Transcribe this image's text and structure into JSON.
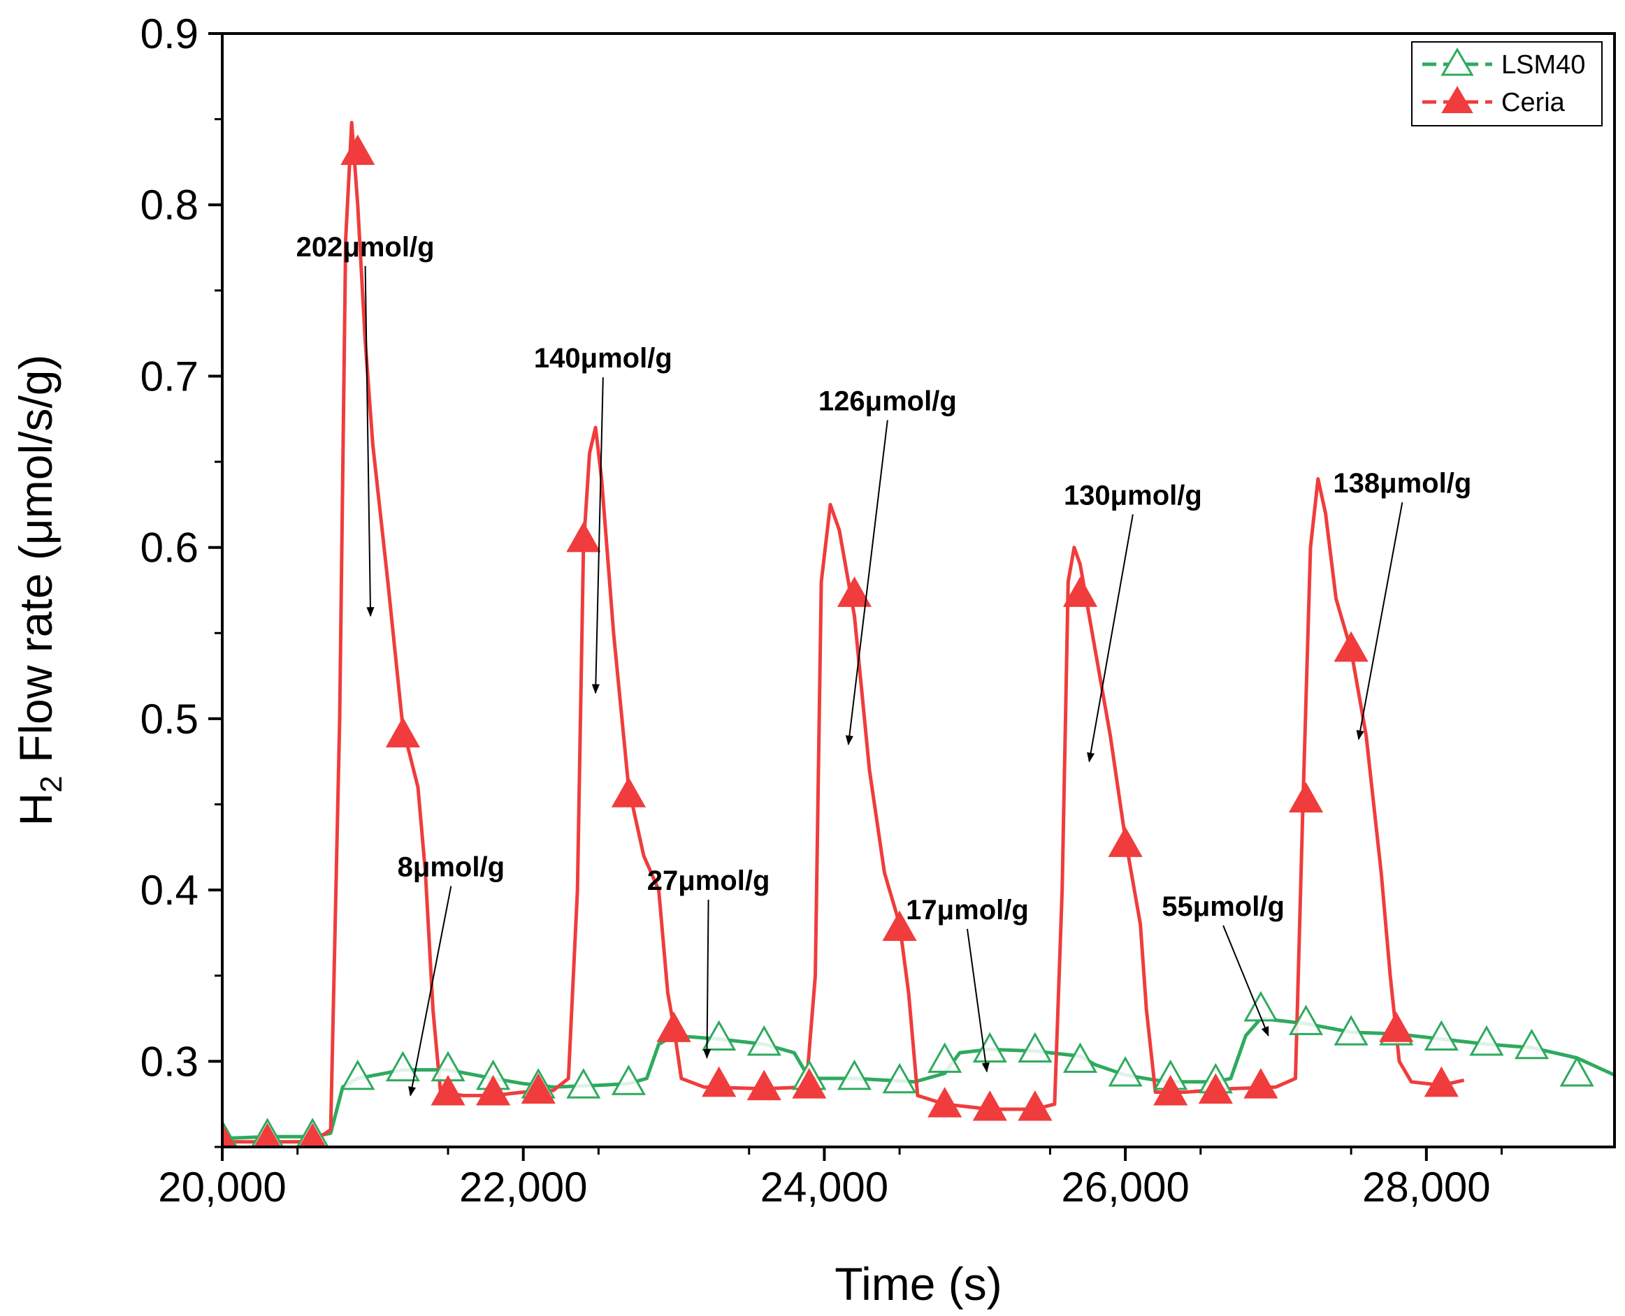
{
  "chart_data": {
    "type": "line",
    "xlabel": "Time (s)",
    "ylabel_main": "H",
    "ylabel_sub": "2",
    "ylabel_rest": " Flow rate (μmol/s/g)",
    "xlim": [
      20000,
      29250
    ],
    "ylim": [
      0.25,
      0.9
    ],
    "x_ticks": [
      20000,
      22000,
      24000,
      26000,
      28000
    ],
    "x_tick_labels": [
      "20,000",
      "22,000",
      "24,000",
      "26,000",
      "28,000"
    ],
    "y_ticks": [
      0.3,
      0.4,
      0.5,
      0.6,
      0.7,
      0.8,
      0.9
    ],
    "y_tick_labels": [
      "0.3",
      "0.4",
      "0.5",
      "0.6",
      "0.7",
      "0.8",
      "0.9"
    ],
    "legend": [
      {
        "name": "LSM40",
        "color": "#2eaa5e",
        "marker": "open-triangle"
      },
      {
        "name": "Ceria",
        "color": "#f03c3c",
        "marker": "filled-triangle"
      }
    ],
    "series": [
      {
        "name": "LSM40",
        "color": "#2eaa5e",
        "line": [
          [
            20000,
            0.255
          ],
          [
            20300,
            0.256
          ],
          [
            20600,
            0.256
          ],
          [
            20720,
            0.258
          ],
          [
            20800,
            0.285
          ],
          [
            20900,
            0.29
          ],
          [
            21200,
            0.295
          ],
          [
            21500,
            0.295
          ],
          [
            21800,
            0.29
          ],
          [
            22000,
            0.287
          ],
          [
            22200,
            0.285
          ],
          [
            22500,
            0.286
          ],
          [
            22700,
            0.287
          ],
          [
            22820,
            0.29
          ],
          [
            22900,
            0.31
          ],
          [
            23000,
            0.315
          ],
          [
            23300,
            0.313
          ],
          [
            23600,
            0.31
          ],
          [
            23800,
            0.305
          ],
          [
            23900,
            0.29
          ],
          [
            24000,
            0.29
          ],
          [
            24200,
            0.29
          ],
          [
            24600,
            0.288
          ],
          [
            24800,
            0.293
          ],
          [
            24900,
            0.305
          ],
          [
            25100,
            0.307
          ],
          [
            25400,
            0.306
          ],
          [
            25700,
            0.303
          ],
          [
            25800,
            0.298
          ],
          [
            26000,
            0.292
          ],
          [
            26200,
            0.289
          ],
          [
            26300,
            0.288
          ],
          [
            26600,
            0.288
          ],
          [
            26700,
            0.29
          ],
          [
            26800,
            0.315
          ],
          [
            26900,
            0.325
          ],
          [
            27200,
            0.322
          ],
          [
            27500,
            0.317
          ],
          [
            27800,
            0.316
          ],
          [
            28100,
            0.313
          ],
          [
            28400,
            0.31
          ],
          [
            28700,
            0.308
          ],
          [
            29000,
            0.302
          ],
          [
            29250,
            0.292
          ]
        ],
        "markers": [
          [
            20000,
            0.255
          ],
          [
            20300,
            0.256
          ],
          [
            20600,
            0.256
          ],
          [
            20900,
            0.29
          ],
          [
            21200,
            0.295
          ],
          [
            21500,
            0.295
          ],
          [
            21800,
            0.29
          ],
          [
            22100,
            0.285
          ],
          [
            22400,
            0.285
          ],
          [
            22700,
            0.287
          ],
          [
            23000,
            0.318
          ],
          [
            23300,
            0.313
          ],
          [
            23600,
            0.31
          ],
          [
            23900,
            0.29
          ],
          [
            24200,
            0.29
          ],
          [
            24500,
            0.288
          ],
          [
            24800,
            0.3
          ],
          [
            25100,
            0.306
          ],
          [
            25400,
            0.306
          ],
          [
            25700,
            0.3
          ],
          [
            26000,
            0.292
          ],
          [
            26300,
            0.29
          ],
          [
            26600,
            0.288
          ],
          [
            26900,
            0.33
          ],
          [
            27200,
            0.322
          ],
          [
            27500,
            0.316
          ],
          [
            27800,
            0.316
          ],
          [
            28100,
            0.313
          ],
          [
            28400,
            0.31
          ],
          [
            28700,
            0.308
          ],
          [
            29000,
            0.292
          ]
        ]
      },
      {
        "name": "Ceria",
        "color": "#f03c3c",
        "line": [
          [
            20000,
            0.253
          ],
          [
            20600,
            0.253
          ],
          [
            20720,
            0.26
          ],
          [
            20780,
            0.5
          ],
          [
            20820,
            0.78
          ],
          [
            20860,
            0.848
          ],
          [
            20900,
            0.8
          ],
          [
            20950,
            0.72
          ],
          [
            21000,
            0.66
          ],
          [
            21100,
            0.58
          ],
          [
            21200,
            0.495
          ],
          [
            21300,
            0.46
          ],
          [
            21350,
            0.41
          ],
          [
            21400,
            0.33
          ],
          [
            21450,
            0.282
          ],
          [
            21600,
            0.28
          ],
          [
            21800,
            0.28
          ],
          [
            22000,
            0.282
          ],
          [
            22200,
            0.283
          ],
          [
            22300,
            0.29
          ],
          [
            22360,
            0.4
          ],
          [
            22400,
            0.6
          ],
          [
            22440,
            0.655
          ],
          [
            22480,
            0.67
          ],
          [
            22520,
            0.64
          ],
          [
            22600,
            0.55
          ],
          [
            22700,
            0.46
          ],
          [
            22800,
            0.42
          ],
          [
            22900,
            0.4
          ],
          [
            22960,
            0.34
          ],
          [
            23000,
            0.32
          ],
          [
            23050,
            0.29
          ],
          [
            23200,
            0.285
          ],
          [
            23600,
            0.284
          ],
          [
            23880,
            0.285
          ],
          [
            23940,
            0.35
          ],
          [
            23980,
            0.58
          ],
          [
            24040,
            0.625
          ],
          [
            24100,
            0.61
          ],
          [
            24200,
            0.56
          ],
          [
            24300,
            0.47
          ],
          [
            24400,
            0.41
          ],
          [
            24500,
            0.38
          ],
          [
            24560,
            0.34
          ],
          [
            24620,
            0.28
          ],
          [
            24800,
            0.275
          ],
          [
            25100,
            0.272
          ],
          [
            25400,
            0.272
          ],
          [
            25530,
            0.275
          ],
          [
            25580,
            0.4
          ],
          [
            25620,
            0.58
          ],
          [
            25660,
            0.6
          ],
          [
            25700,
            0.59
          ],
          [
            25800,
            0.54
          ],
          [
            25900,
            0.49
          ],
          [
            26000,
            0.43
          ],
          [
            26100,
            0.38
          ],
          [
            26140,
            0.33
          ],
          [
            26200,
            0.282
          ],
          [
            26400,
            0.282
          ],
          [
            26700,
            0.284
          ],
          [
            27000,
            0.285
          ],
          [
            27130,
            0.29
          ],
          [
            27180,
            0.45
          ],
          [
            27230,
            0.6
          ],
          [
            27280,
            0.64
          ],
          [
            27330,
            0.62
          ],
          [
            27400,
            0.57
          ],
          [
            27500,
            0.54
          ],
          [
            27600,
            0.49
          ],
          [
            27700,
            0.41
          ],
          [
            27760,
            0.35
          ],
          [
            27820,
            0.3
          ],
          [
            27900,
            0.288
          ],
          [
            28100,
            0.286
          ],
          [
            28250,
            0.289
          ]
        ],
        "markers": [
          [
            20000,
            0.253
          ],
          [
            20300,
            0.253
          ],
          [
            20600,
            0.253
          ],
          [
            20900,
            0.83
          ],
          [
            21200,
            0.49
          ],
          [
            21500,
            0.281
          ],
          [
            21800,
            0.281
          ],
          [
            22100,
            0.282
          ],
          [
            22400,
            0.604
          ],
          [
            22700,
            0.455
          ],
          [
            23000,
            0.318
          ],
          [
            23300,
            0.286
          ],
          [
            23600,
            0.284
          ],
          [
            23900,
            0.285
          ],
          [
            24200,
            0.572
          ],
          [
            24500,
            0.377
          ],
          [
            24800,
            0.274
          ],
          [
            25100,
            0.272
          ],
          [
            25400,
            0.272
          ],
          [
            25700,
            0.572
          ],
          [
            26000,
            0.426
          ],
          [
            26300,
            0.281
          ],
          [
            26600,
            0.282
          ],
          [
            26900,
            0.285
          ],
          [
            27200,
            0.452
          ],
          [
            27500,
            0.54
          ],
          [
            27800,
            0.318
          ],
          [
            28100,
            0.286
          ]
        ]
      }
    ],
    "annotations": [
      {
        "text": "202μmol/g",
        "text_at": [
          20950,
          0.77
        ],
        "arrow_to": [
          20985,
          0.56
        ]
      },
      {
        "text": "140μmol/g",
        "text_at": [
          22530,
          0.705
        ],
        "arrow_to": [
          22480,
          0.515
        ]
      },
      {
        "text": "126μmol/g",
        "text_at": [
          24420,
          0.68
        ],
        "arrow_to": [
          24160,
          0.485
        ]
      },
      {
        "text": "130μmol/g",
        "text_at": [
          26050,
          0.625
        ],
        "arrow_to": [
          25760,
          0.475
        ]
      },
      {
        "text": "138μmol/g",
        "text_at": [
          27840,
          0.632
        ],
        "arrow_to": [
          27550,
          0.488
        ]
      },
      {
        "text": "8μmol/g",
        "text_at": [
          21520,
          0.408
        ],
        "arrow_to": [
          21250,
          0.28
        ]
      },
      {
        "text": "27μmol/g",
        "text_at": [
          23230,
          0.4
        ],
        "arrow_to": [
          23220,
          0.302
        ]
      },
      {
        "text": "17μmol/g",
        "text_at": [
          24950,
          0.383
        ],
        "arrow_to": [
          25080,
          0.294
        ]
      },
      {
        "text": "55μmol/g",
        "text_at": [
          26650,
          0.385
        ],
        "arrow_to": [
          26950,
          0.315
        ]
      }
    ]
  }
}
